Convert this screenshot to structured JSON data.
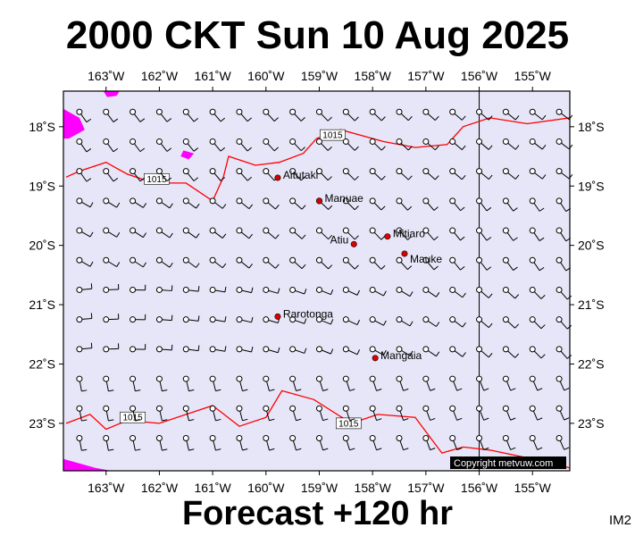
{
  "header": {
    "title": "2000 CKT Sun 10 Aug 2025"
  },
  "footer": {
    "forecast": "Forecast +120 hr",
    "tag": "IM2"
  },
  "copyright": "Copyright metvuw.com",
  "map": {
    "lon_range": [
      -163.8,
      -154.3
    ],
    "lat_range": [
      -23.8,
      -17.4
    ],
    "colors": {
      "background": "#e6e6f8",
      "land_pink": "#ff00ff",
      "isobar": "#ff0000",
      "station": "#dd0000"
    },
    "lon_ticks": [
      {
        "lon": -163,
        "label": "163˚W"
      },
      {
        "lon": -162,
        "label": "162˚W"
      },
      {
        "lon": -161,
        "label": "161˚W"
      },
      {
        "lon": -160,
        "label": "160˚W"
      },
      {
        "lon": -159,
        "label": "159˚W"
      },
      {
        "lon": -158,
        "label": "158˚W"
      },
      {
        "lon": -157,
        "label": "157˚W"
      },
      {
        "lon": -156,
        "label": "156˚W"
      },
      {
        "lon": -155,
        "label": "155˚W"
      }
    ],
    "lat_ticks": [
      {
        "lat": -18,
        "label": "18˚S"
      },
      {
        "lat": -19,
        "label": "19˚S"
      },
      {
        "lat": -20,
        "label": "20˚S"
      },
      {
        "lat": -21,
        "label": "21˚S"
      },
      {
        "lat": -22,
        "label": "22˚S"
      },
      {
        "lat": -23,
        "label": "23˚S"
      }
    ],
    "reference_meridian": -156,
    "places": [
      {
        "name": "Aitutaki",
        "lon": -159.78,
        "lat": -18.86,
        "label_pos": "right"
      },
      {
        "name": "Manuae",
        "lon": -159.0,
        "lat": -19.25,
        "label_pos": "right"
      },
      {
        "name": "Mitiaro",
        "lon": -157.72,
        "lat": -19.85,
        "label_pos": "right"
      },
      {
        "name": "Atiu",
        "lon": -158.35,
        "lat": -19.98,
        "label_pos": "left"
      },
      {
        "name": "Mauke",
        "lon": -157.4,
        "lat": -20.14,
        "label_pos": "below-right"
      },
      {
        "name": "Rarotonga",
        "lon": -159.78,
        "lat": -21.2,
        "label_pos": "right"
      },
      {
        "name": "Mangaia",
        "lon": -157.95,
        "lat": -21.9,
        "label_pos": "right"
      }
    ],
    "isobars": [
      {
        "label": "1015",
        "points": [
          [
            -163.75,
            -18.85
          ],
          [
            -163.5,
            -18.75
          ],
          [
            -163.0,
            -18.6
          ],
          [
            -162.6,
            -18.8
          ],
          [
            -162.1,
            -18.95
          ],
          [
            -161.5,
            -18.95
          ],
          [
            -161.0,
            -19.25
          ],
          [
            -160.8,
            -18.85
          ],
          [
            -160.7,
            -18.5
          ],
          [
            -160.2,
            -18.65
          ],
          [
            -159.75,
            -18.6
          ],
          [
            -159.3,
            -18.45
          ],
          [
            -159.05,
            -18.2
          ],
          [
            -158.6,
            -18.05
          ],
          [
            -157.8,
            -18.25
          ],
          [
            -157.2,
            -18.35
          ],
          [
            -156.6,
            -18.3
          ],
          [
            -156.3,
            -18.0
          ],
          [
            -155.8,
            -17.85
          ],
          [
            -155.1,
            -17.95
          ],
          [
            -154.3,
            -17.85
          ]
        ],
        "labels": [
          {
            "lon": -158.75,
            "lat": -18.14
          },
          {
            "lon": -162.05,
            "lat": -18.88
          }
        ]
      },
      {
        "label": "1015",
        "points": [
          [
            -163.75,
            -23.0
          ],
          [
            -163.3,
            -22.85
          ],
          [
            -163.0,
            -23.1
          ],
          [
            -162.6,
            -22.95
          ],
          [
            -162.0,
            -23.0
          ],
          [
            -161.0,
            -22.7
          ],
          [
            -160.5,
            -23.05
          ],
          [
            -160.0,
            -22.9
          ],
          [
            -159.7,
            -22.45
          ],
          [
            -159.1,
            -22.6
          ],
          [
            -158.4,
            -23.0
          ],
          [
            -157.9,
            -22.85
          ],
          [
            -157.2,
            -22.9
          ],
          [
            -156.7,
            -23.5
          ],
          [
            -156.3,
            -23.4
          ],
          [
            -155.8,
            -23.45
          ],
          [
            -155.0,
            -23.6
          ],
          [
            -154.3,
            -23.75
          ]
        ],
        "labels": [
          {
            "lon": -162.5,
            "lat": -22.9
          },
          {
            "lon": -158.45,
            "lat": -23.0
          }
        ]
      }
    ],
    "pink_patches": [
      {
        "points": [
          [
            -163.8,
            -17.7
          ],
          [
            -163.5,
            -17.85
          ],
          [
            -163.4,
            -18.05
          ],
          [
            -163.7,
            -18.2
          ],
          [
            -163.8,
            -18.2
          ]
        ]
      },
      {
        "points": [
          [
            -161.55,
            -18.4
          ],
          [
            -161.35,
            -18.45
          ],
          [
            -161.45,
            -18.55
          ],
          [
            -161.6,
            -18.5
          ]
        ]
      },
      {
        "points": [
          [
            -163.8,
            -23.6
          ],
          [
            -163.2,
            -23.75
          ],
          [
            -162.9,
            -23.8
          ],
          [
            -163.8,
            -23.8
          ]
        ]
      },
      {
        "points": [
          [
            -163.05,
            -17.4
          ],
          [
            -162.75,
            -17.4
          ],
          [
            -162.8,
            -17.48
          ],
          [
            -162.98,
            -17.5
          ]
        ]
      }
    ],
    "wind_grid": {
      "lons": [
        -163.5,
        -163.0,
        -162.5,
        -162.0,
        -161.5,
        -161.0,
        -160.5,
        -160.0,
        -159.5,
        -159.0,
        -158.5,
        -158.0,
        -157.5,
        -157.0,
        -156.5,
        -156.0,
        -155.5,
        -155.0,
        -154.5
      ],
      "lats": [
        -17.75,
        -18.25,
        -18.75,
        -19.25,
        -19.75,
        -20.25,
        -20.75,
        -21.25,
        -21.75,
        -22.25,
        -22.75,
        -23.25,
        -23.75
      ]
    }
  }
}
